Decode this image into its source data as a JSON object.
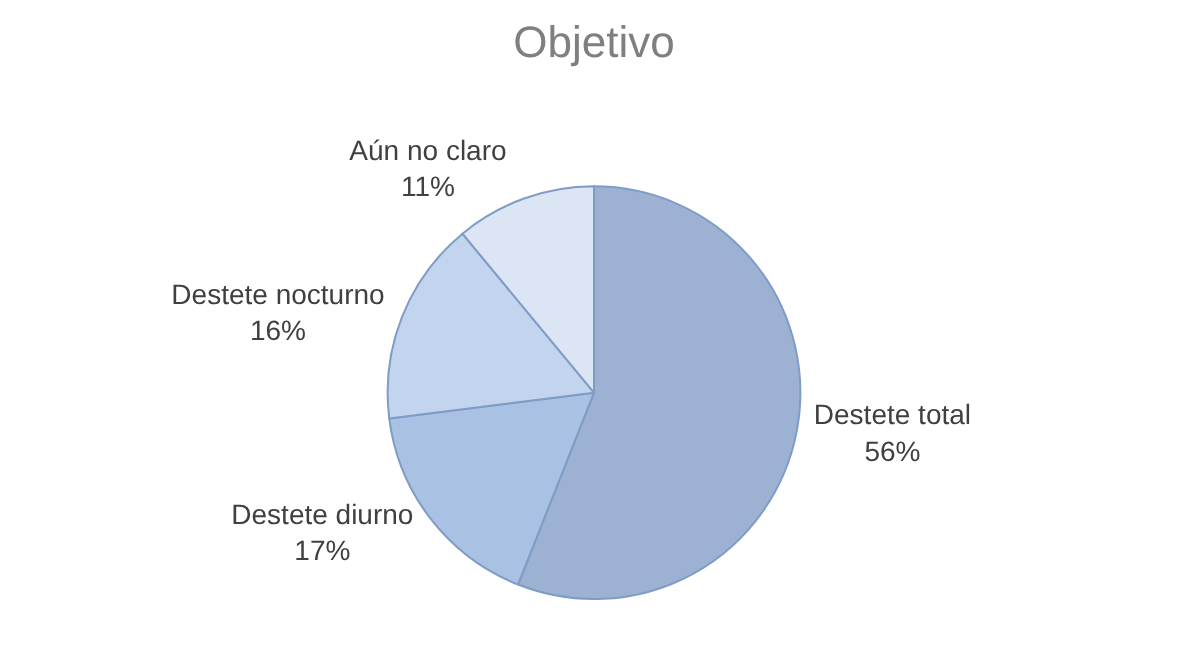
{
  "chart_data": {
    "type": "pie",
    "title": "Objetivo",
    "categories": [
      "Destete total",
      "Destete diurno",
      "Destete nocturno",
      "Aún no claro"
    ],
    "values": [
      56,
      17,
      16,
      11
    ],
    "value_labels": [
      "56%",
      "17%",
      "16%",
      "11%"
    ],
    "colors": [
      "#9db2d3",
      "#a9c1e2",
      "#c2d4ee",
      "#dbe5f4"
    ],
    "legend": false
  }
}
